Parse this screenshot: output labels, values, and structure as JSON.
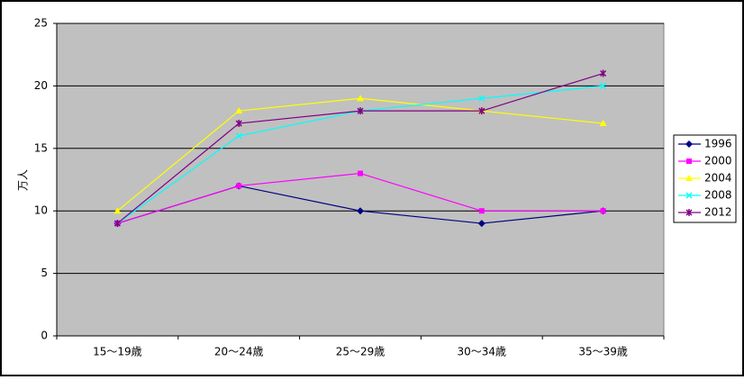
{
  "chart_data": {
    "type": "line",
    "ylabel": "万人",
    "categories": [
      "15～19歳",
      "20～24歳",
      "25～29歳",
      "30～34歳",
      "35～39歳"
    ],
    "series": [
      {
        "name": "1996",
        "color": "#000080",
        "marker": "diamond",
        "values": [
          9,
          12,
          10,
          9,
          10
        ]
      },
      {
        "name": "2000",
        "color": "#ff00ff",
        "marker": "square",
        "values": [
          9,
          12,
          13,
          10,
          10
        ]
      },
      {
        "name": "2004",
        "color": "#ffff00",
        "marker": "triangle",
        "values": [
          10,
          18,
          19,
          18,
          17
        ]
      },
      {
        "name": "2008",
        "color": "#00ffff",
        "marker": "x",
        "values": [
          9,
          16,
          18,
          19,
          20
        ]
      },
      {
        "name": "2012",
        "color": "#800080",
        "marker": "star",
        "values": [
          9,
          17,
          18,
          18,
          21
        ]
      }
    ],
    "ylim": [
      0,
      25
    ],
    "yticks": [
      0,
      5,
      10,
      15,
      20,
      25
    ],
    "grid": true,
    "legend": "right"
  }
}
